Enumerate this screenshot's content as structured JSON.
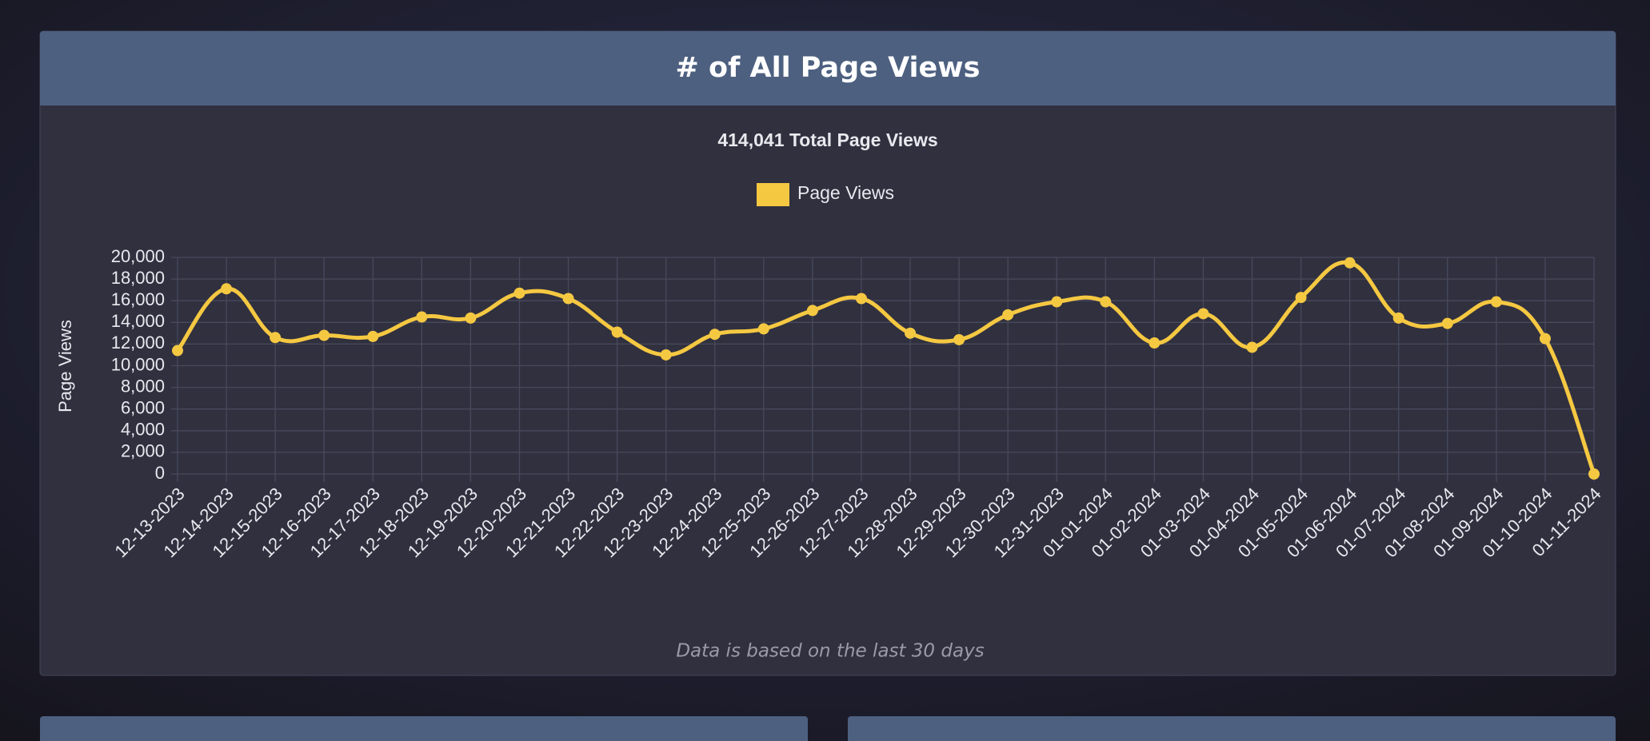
{
  "chart_data": {
    "type": "line",
    "title": "# of All Page Views",
    "subtitle": "414,041 Total Page Views",
    "footnote": "Data is based on the last 30 days",
    "y_label": "Page Views",
    "categories": [
      "12-13-2023",
      "12-14-2023",
      "12-15-2023",
      "12-16-2023",
      "12-17-2023",
      "12-18-2023",
      "12-19-2023",
      "12-20-2023",
      "12-21-2023",
      "12-22-2023",
      "12-23-2023",
      "12-24-2023",
      "12-25-2023",
      "12-26-2023",
      "12-27-2023",
      "12-28-2023",
      "12-29-2023",
      "12-30-2023",
      "12-31-2023",
      "01-01-2024",
      "01-02-2024",
      "01-03-2024",
      "01-04-2024",
      "01-05-2024",
      "01-06-2024",
      "01-07-2024",
      "01-08-2024",
      "01-09-2024",
      "01-10-2024",
      "01-11-2024"
    ],
    "series": [
      {
        "name": "Page Views",
        "color": "#f5c842",
        "values": [
          11400,
          17100,
          12600,
          12800,
          12700,
          14500,
          14400,
          16700,
          16200,
          13100,
          11000,
          12900,
          13400,
          15100,
          16200,
          13000,
          12400,
          14700,
          15900,
          15900,
          12100,
          14800,
          11700,
          16300,
          19500,
          14400,
          13900,
          15900,
          12500,
          0
        ]
      }
    ],
    "ylim": [
      0,
      20000
    ],
    "yticks": [
      0,
      {
        "value": 2000,
        "label": "2,000"
      },
      {
        "value": 4000,
        "label": "4,000"
      },
      {
        "value": 6000,
        "label": "6,000"
      },
      {
        "value": 8000,
        "label": "8,000"
      },
      {
        "value": 10000,
        "label": "10,000"
      },
      {
        "value": 12000,
        "label": "12,000"
      },
      {
        "value": 14000,
        "label": "14,000"
      },
      {
        "value": 16000,
        "label": "16,000"
      },
      {
        "value": 18000,
        "label": "18,000"
      },
      {
        "value": 20000,
        "label": "20,000"
      }
    ],
    "grid": true,
    "legend": "top"
  }
}
